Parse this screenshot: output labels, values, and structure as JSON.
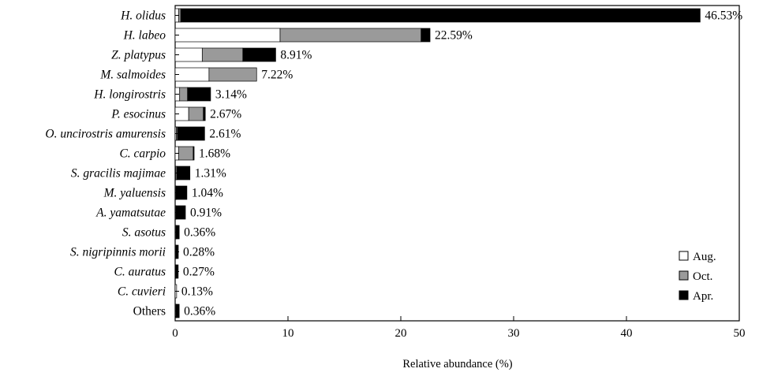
{
  "chart_data": {
    "type": "bar",
    "orientation": "horizontal",
    "stacked": true,
    "title": "",
    "xlabel": "Relative abundance (%)",
    "ylabel": "",
    "xlim": [
      0,
      50
    ],
    "xticks": [
      0,
      10,
      20,
      30,
      40,
      50
    ],
    "grid": false,
    "legend_position": "bottom-right",
    "categories": [
      "H. olidus",
      "H. labeo",
      "Z. platypus",
      "M. salmoides",
      "H. longirostris",
      "P. esocinus",
      "O. uncirostris amurensis",
      "C. carpio",
      "S. gracilis majimae",
      "M. yaluensis",
      "A. yamatsutae",
      "S. asotus",
      "S. nigripinnis morii",
      "C. auratus",
      "C. cuvieri",
      "Others"
    ],
    "totals_labels": [
      "46.53%",
      "22.59%",
      "8.91%",
      "7.22%",
      "3.14%",
      "2.67%",
      "2.61%",
      "1.68%",
      "1.31%",
      "1.04%",
      "0.91%",
      "0.36%",
      "0.28%",
      "0.27%",
      "0.13%",
      "0.36%"
    ],
    "series": [
      {
        "name": "Aug.",
        "color": "#ffffff",
        "values": [
          0.3,
          9.3,
          2.4,
          3.0,
          0.4,
          1.2,
          0.1,
          0.3,
          0.05,
          0.05,
          0.05,
          0.05,
          0.03,
          0.03,
          0.13,
          0.05
        ]
      },
      {
        "name": "Oct.",
        "color": "#9a9a9a",
        "values": [
          0.2,
          12.5,
          3.6,
          4.22,
          0.7,
          1.3,
          0.1,
          1.3,
          0.1,
          0.05,
          0.05,
          0.05,
          0.05,
          0.04,
          0.0,
          0.05
        ]
      },
      {
        "name": "Apr.",
        "color": "#000000",
        "values": [
          46.03,
          0.79,
          2.91,
          0.0,
          2.04,
          0.17,
          2.41,
          0.08,
          1.16,
          0.94,
          0.81,
          0.26,
          0.2,
          0.2,
          0.0,
          0.26
        ]
      }
    ]
  }
}
